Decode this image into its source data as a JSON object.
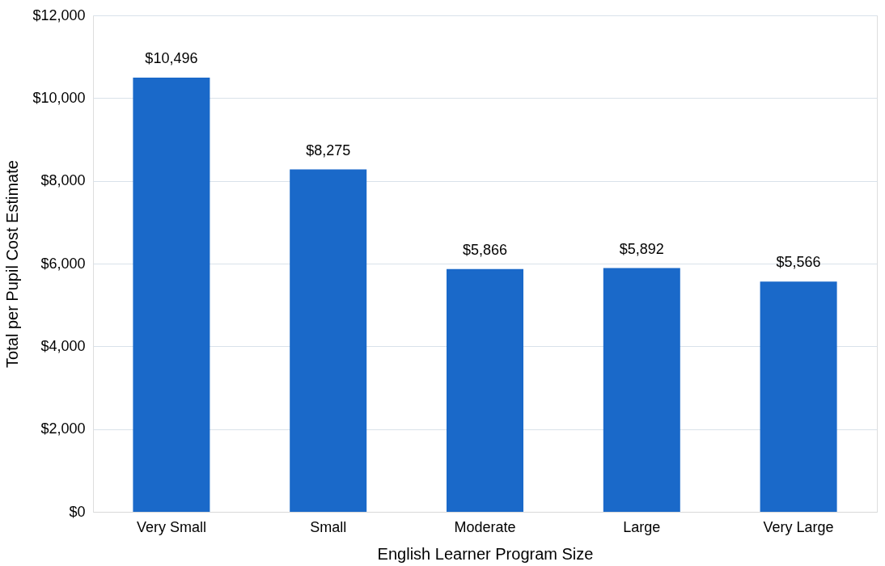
{
  "chart_data": {
    "type": "bar",
    "xlabel": "English Learner Program Size",
    "ylabel": "Total per Pupil Cost Estimate",
    "categories": [
      "Very Small",
      "Small",
      "Moderate",
      "Large",
      "Very Large"
    ],
    "values": [
      10496,
      8275,
      5866,
      5892,
      5566
    ],
    "value_labels": [
      "$10,496",
      "$8,275",
      "$5,866",
      "$5,892",
      "$5,566"
    ],
    "color": "#1a69c9",
    "ylim": [
      0,
      12000
    ],
    "yticks": [
      {
        "value": 0,
        "label": "$0"
      },
      {
        "value": 2000,
        "label": "$2,000"
      },
      {
        "value": 4000,
        "label": "$4,000"
      },
      {
        "value": 6000,
        "label": "$6,000"
      },
      {
        "value": 8000,
        "label": "$8,000"
      },
      {
        "value": 10000,
        "label": "$10,000"
      },
      {
        "value": 12000,
        "label": "$12,000"
      }
    ],
    "grid": "y"
  }
}
